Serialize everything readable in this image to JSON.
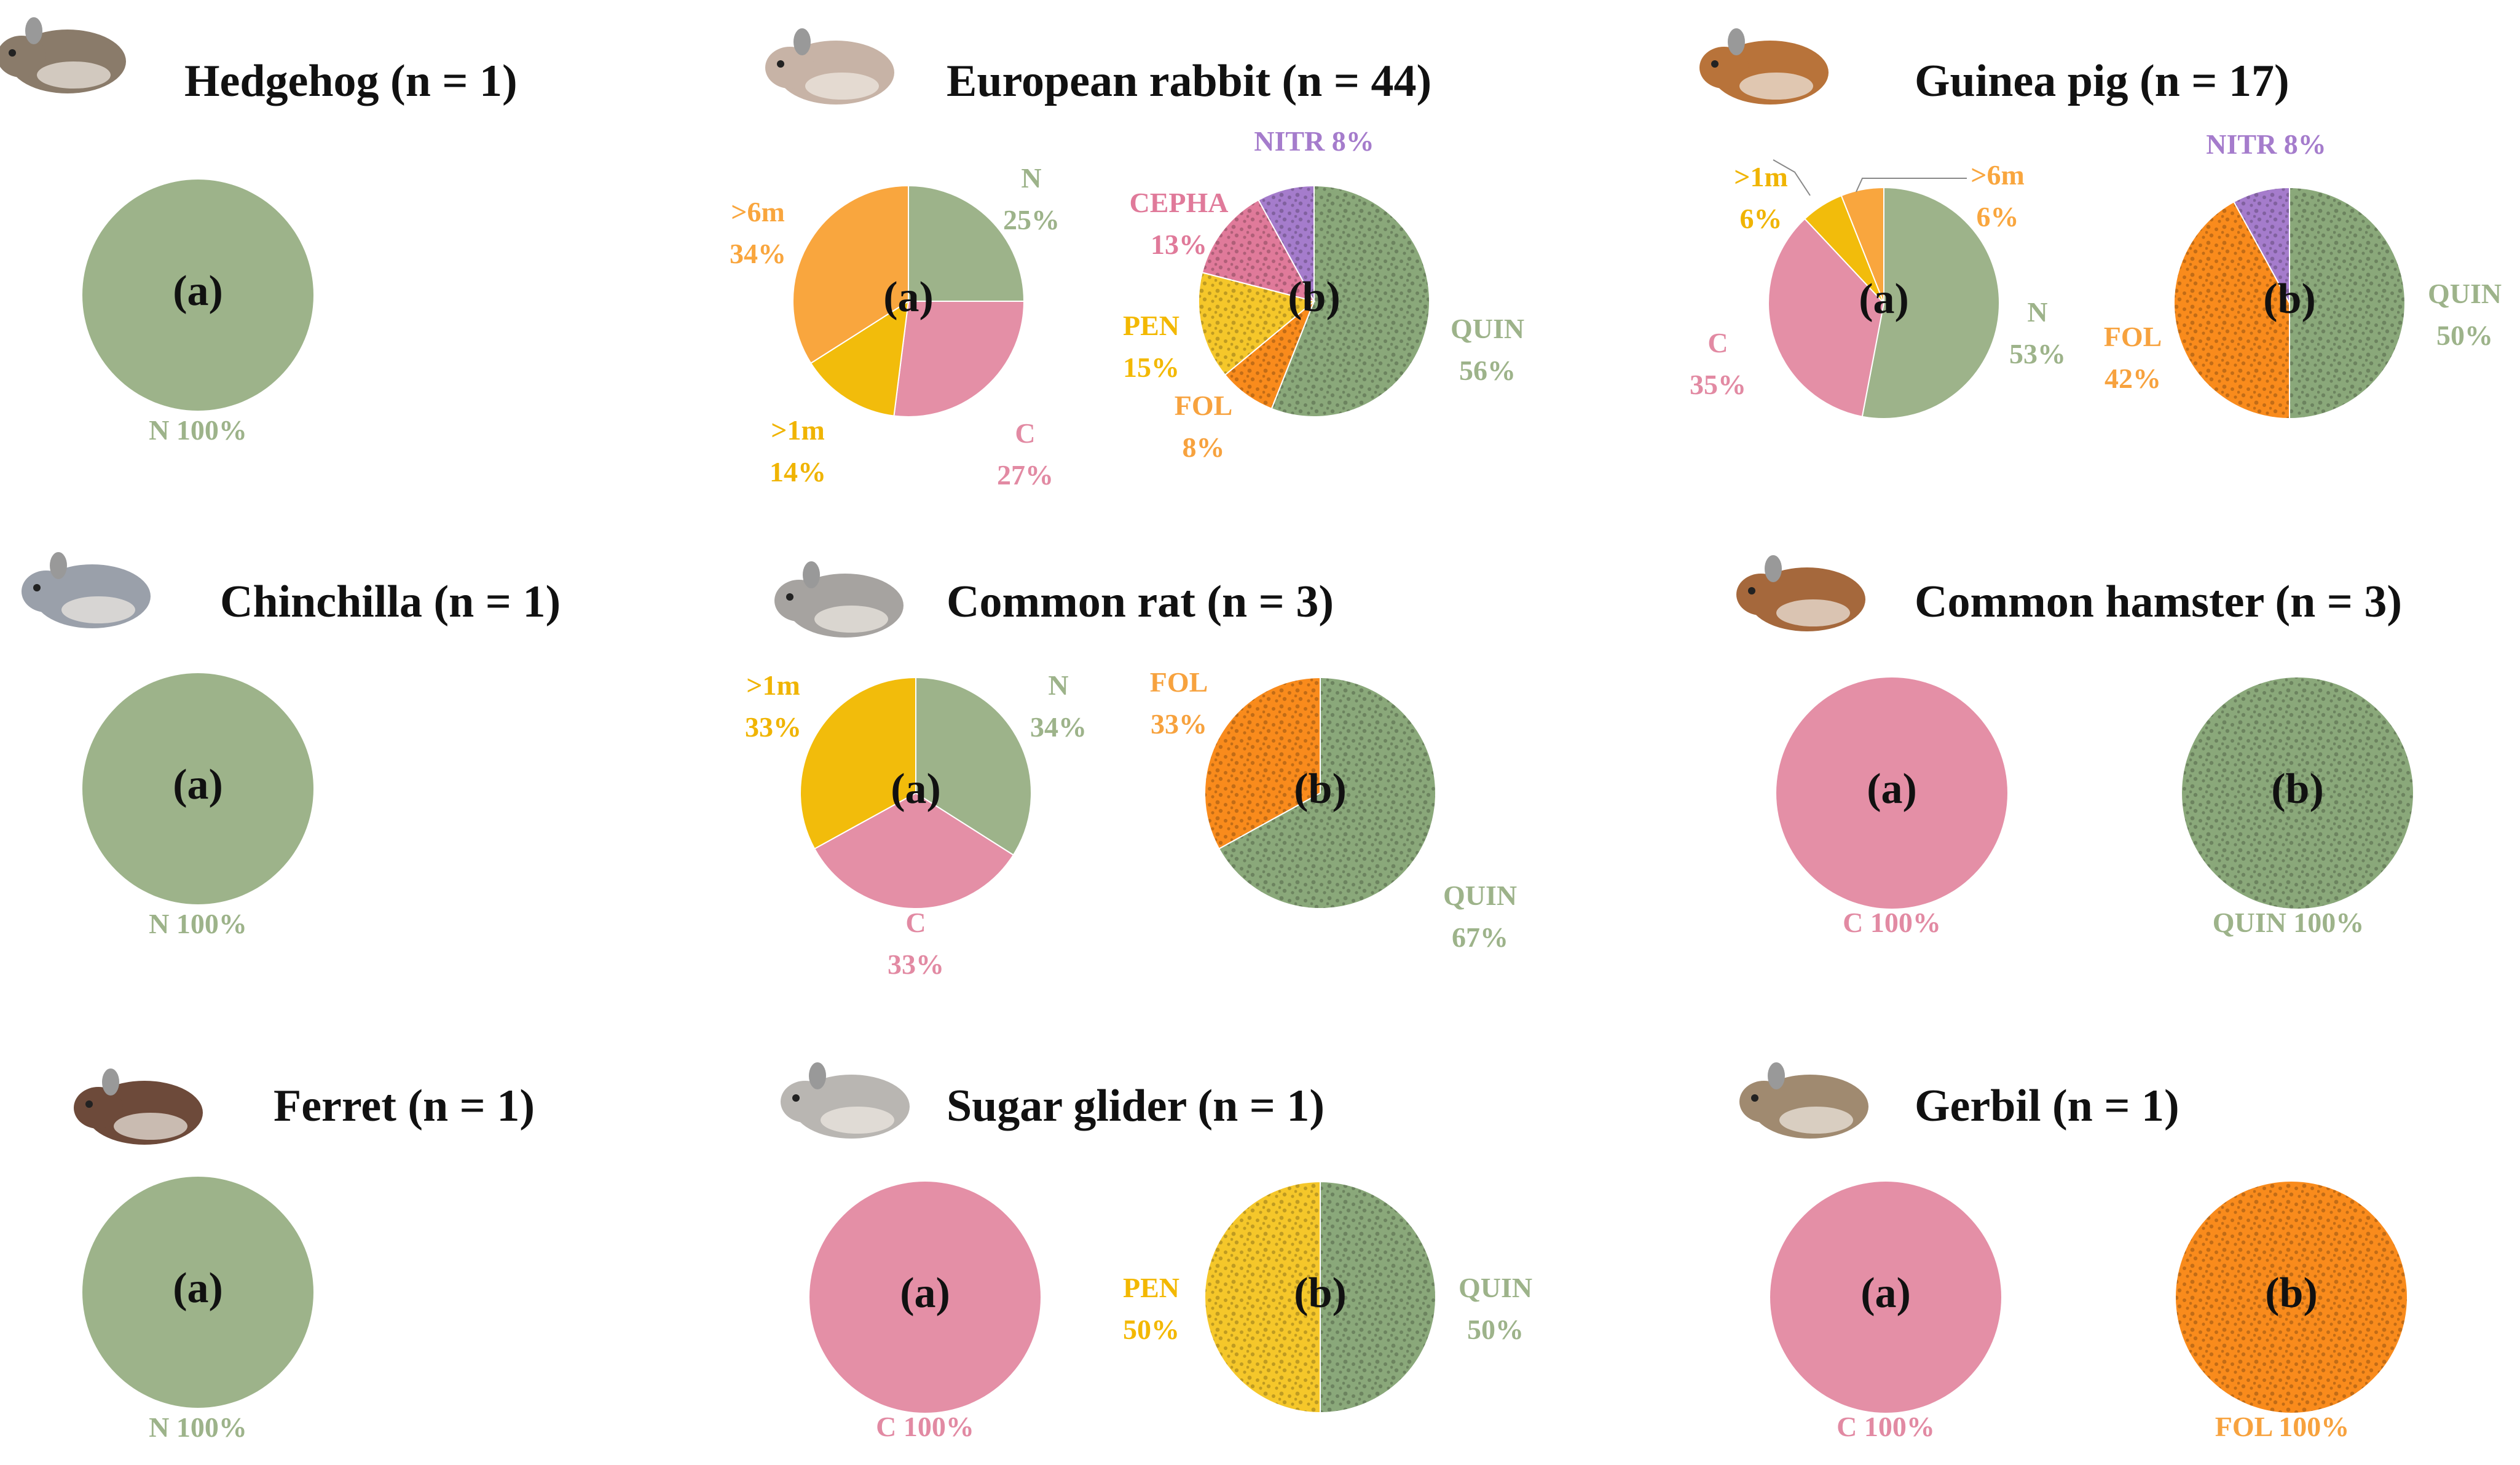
{
  "colors": {
    "N": "#9db38a",
    "C": "#e48fa6",
    ">1m": "#f2bc0b",
    ">6m": "#f9a63e",
    "QUIN": "#8aa87a",
    "FOL": "#f98b1c",
    "PEN": "#f5c72a",
    "CEPHA": "#e07a9a",
    "NITR": "#a57ccc"
  },
  "label_colors": {
    "N": "#9db38a",
    "C": "#e28aa3",
    ">1m": "#f0b400",
    ">6m": "#f9a63e",
    "QUIN": "#9db38a",
    "FOL": "#f7a23e",
    "PEN": "#f3b800",
    "CEPHA": "#e07a9a",
    "NITR": "#a57ccc"
  },
  "panel_labels": {
    "a": "(a)",
    "b": "(b)"
  },
  "chart_data": [
    {
      "animal": "Hedgehog",
      "icon": "hedgehog-icon",
      "title": "Hedgehog (n = 1)",
      "n": 1,
      "pies": [
        {
          "panel": "a",
          "type": "pie",
          "slices": [
            {
              "category": "N",
              "value": 100,
              "label": "N",
              "pct": "100%"
            }
          ]
        }
      ]
    },
    {
      "animal": "European rabbit",
      "icon": "rabbit-icon",
      "title": "European rabbit (n = 44)",
      "n": 44,
      "pies": [
        {
          "panel": "a",
          "type": "pie",
          "slices": [
            {
              "category": "N",
              "value": 25,
              "label": "N",
              "pct": "25%"
            },
            {
              "category": "C",
              "value": 27,
              "label": "C",
              "pct": "27%"
            },
            {
              "category": ">1m",
              "value": 14,
              "label": ">1m",
              "pct": "14%"
            },
            {
              "category": ">6m",
              "value": 34,
              "label": ">6m",
              "pct": "34%"
            }
          ]
        },
        {
          "panel": "b",
          "type": "pie",
          "slices": [
            {
              "category": "QUIN",
              "value": 56,
              "label": "QUIN",
              "pct": "56%"
            },
            {
              "category": "FOL",
              "value": 8,
              "label": "FOL",
              "pct": "8%"
            },
            {
              "category": "PEN",
              "value": 15,
              "label": "PEN",
              "pct": "15%"
            },
            {
              "category": "CEPHA",
              "value": 13,
              "label": "CEPHA",
              "pct": "13%"
            },
            {
              "category": "NITR",
              "value": 8,
              "label": "NITR",
              "pct": "8%"
            }
          ]
        }
      ]
    },
    {
      "animal": "Guinea pig",
      "icon": "guinea-pig-icon",
      "title": "Guinea pig (n = 17)",
      "n": 17,
      "pies": [
        {
          "panel": "a",
          "type": "pie",
          "slices": [
            {
              "category": "N",
              "value": 53,
              "label": "N",
              "pct": "53%"
            },
            {
              "category": "C",
              "value": 35,
              "label": "C",
              "pct": "35%"
            },
            {
              "category": ">1m",
              "value": 6,
              "label": ">1m",
              "pct": "6%"
            },
            {
              "category": ">6m",
              "value": 6,
              "label": ">6m",
              "pct": "6%"
            }
          ]
        },
        {
          "panel": "b",
          "type": "pie",
          "slices": [
            {
              "category": "QUIN",
              "value": 50,
              "label": "QUIN",
              "pct": "50%"
            },
            {
              "category": "FOL",
              "value": 42,
              "label": "FOL",
              "pct": "42%"
            },
            {
              "category": "NITR",
              "value": 8,
              "label": "NITR",
              "pct": "8%"
            }
          ]
        }
      ]
    },
    {
      "animal": "Chinchilla",
      "icon": "chinchilla-icon",
      "title": "Chinchilla (n = 1)",
      "n": 1,
      "pies": [
        {
          "panel": "a",
          "type": "pie",
          "slices": [
            {
              "category": "N",
              "value": 100,
              "label": "N",
              "pct": "100%"
            }
          ]
        }
      ]
    },
    {
      "animal": "Common rat",
      "icon": "rat-icon",
      "title": "Common rat (n = 3)",
      "n": 3,
      "pies": [
        {
          "panel": "a",
          "type": "pie",
          "slices": [
            {
              "category": "N",
              "value": 34,
              "label": "N",
              "pct": "34%"
            },
            {
              "category": "C",
              "value": 33,
              "label": "C",
              "pct": "33%"
            },
            {
              "category": ">1m",
              "value": 33,
              "label": ">1m",
              "pct": "33%"
            }
          ]
        },
        {
          "panel": "b",
          "type": "pie",
          "slices": [
            {
              "category": "QUIN",
              "value": 67,
              "label": "QUIN",
              "pct": "67%"
            },
            {
              "category": "FOL",
              "value": 33,
              "label": "FOL",
              "pct": "33%"
            }
          ]
        }
      ]
    },
    {
      "animal": "Common hamster",
      "icon": "hamster-icon",
      "title": "Common hamster (n = 3)",
      "n": 3,
      "pies": [
        {
          "panel": "a",
          "type": "pie",
          "slices": [
            {
              "category": "C",
              "value": 100,
              "label": "C",
              "pct": "100%"
            }
          ]
        },
        {
          "panel": "b",
          "type": "pie",
          "slices": [
            {
              "category": "QUIN",
              "value": 100,
              "label": "QUIN",
              "pct": "100%"
            }
          ]
        }
      ]
    },
    {
      "animal": "Ferret",
      "icon": "ferret-icon",
      "title": "Ferret (n = 1)",
      "n": 1,
      "pies": [
        {
          "panel": "a",
          "type": "pie",
          "slices": [
            {
              "category": "N",
              "value": 100,
              "label": "N",
              "pct": "100%"
            }
          ]
        }
      ]
    },
    {
      "animal": "Sugar glider",
      "icon": "sugar-glider-icon",
      "title": "Sugar glider (n = 1)",
      "n": 1,
      "pies": [
        {
          "panel": "a",
          "type": "pie",
          "slices": [
            {
              "category": "C",
              "value": 100,
              "label": "C",
              "pct": "100%"
            }
          ]
        },
        {
          "panel": "b",
          "type": "pie",
          "slices": [
            {
              "category": "QUIN",
              "value": 50,
              "label": "QUIN",
              "pct": "50%"
            },
            {
              "category": "PEN",
              "value": 50,
              "label": "PEN",
              "pct": "50%"
            }
          ]
        }
      ]
    },
    {
      "animal": "Gerbil",
      "icon": "gerbil-icon",
      "title": "Gerbil (n = 1)",
      "n": 1,
      "pies": [
        {
          "panel": "a",
          "type": "pie",
          "slices": [
            {
              "category": "C",
              "value": 100,
              "label": "C",
              "pct": "100%"
            }
          ]
        },
        {
          "panel": "b",
          "type": "pie",
          "slices": [
            {
              "category": "FOL",
              "value": 100,
              "label": "FOL",
              "pct": "100%"
            }
          ]
        }
      ]
    }
  ]
}
